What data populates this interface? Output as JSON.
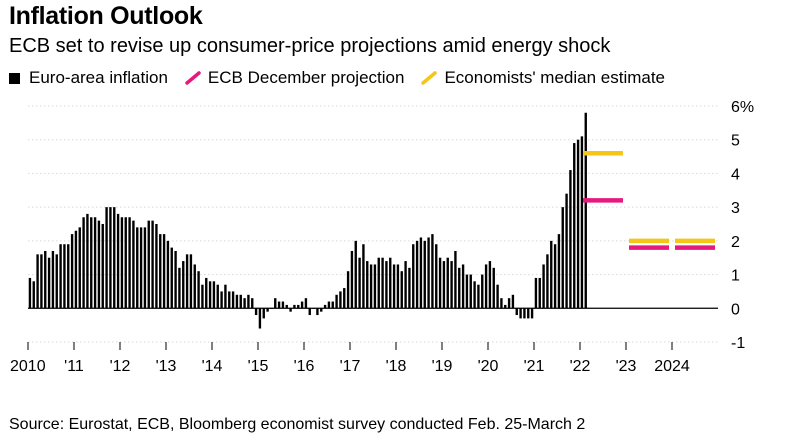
{
  "chart_data": {
    "type": "bar",
    "title": "Inflation Outlook",
    "subtitle": "ECB set to revise up consumer-price projections amid energy shock",
    "source": "Source: Eurostat, ECB, Bloomberg economist survey conducted Feb. 25-March 2",
    "legend": [
      {
        "label": "Euro-area inflation",
        "color": "#000000",
        "kind": "square"
      },
      {
        "label": "ECB December projection",
        "color": "#e6197e",
        "kind": "dash"
      },
      {
        "label": "Economists' median estimate",
        "color": "#f5c518",
        "kind": "dash"
      }
    ],
    "ylim": [
      -1,
      6
    ],
    "y_ticks": [
      6,
      5,
      4,
      3,
      2,
      1,
      0,
      -1
    ],
    "y_tick_labels": [
      "6%",
      "5",
      "4",
      "3",
      "2",
      "1",
      "0",
      "-1"
    ],
    "x_ticks": [
      {
        "year": 2010,
        "label": "2010"
      },
      {
        "year": 2011,
        "label": "'11"
      },
      {
        "year": 2012,
        "label": "'12"
      },
      {
        "year": 2013,
        "label": "'13"
      },
      {
        "year": 2014,
        "label": "'14"
      },
      {
        "year": 2015,
        "label": "'15"
      },
      {
        "year": 2016,
        "label": "'16"
      },
      {
        "year": 2017,
        "label": "'17"
      },
      {
        "year": 2018,
        "label": "'18"
      },
      {
        "year": 2019,
        "label": "'19"
      },
      {
        "year": 2020,
        "label": "'20"
      },
      {
        "year": 2021,
        "label": "'21"
      },
      {
        "year": 2022,
        "label": "'22"
      },
      {
        "year": 2023,
        "label": "'23"
      },
      {
        "year": 2024,
        "label": "2024"
      }
    ],
    "x_domain": [
      2010,
      2025
    ],
    "series_start": "2010-01",
    "monthly_inflation": [
      0.9,
      0.8,
      1.6,
      1.6,
      1.7,
      1.5,
      1.7,
      1.6,
      1.9,
      1.9,
      1.9,
      2.2,
      2.3,
      2.4,
      2.7,
      2.8,
      2.7,
      2.7,
      2.6,
      2.5,
      3.0,
      3.0,
      3.0,
      2.8,
      2.7,
      2.7,
      2.7,
      2.6,
      2.4,
      2.4,
      2.4,
      2.6,
      2.6,
      2.5,
      2.2,
      2.2,
      2.0,
      1.8,
      1.7,
      1.2,
      1.4,
      1.6,
      1.6,
      1.3,
      1.1,
      0.7,
      0.9,
      0.8,
      0.8,
      0.7,
      0.5,
      0.7,
      0.5,
      0.5,
      0.4,
      0.4,
      0.3,
      0.4,
      0.3,
      -0.2,
      -0.6,
      -0.3,
      -0.1,
      0.0,
      0.3,
      0.2,
      0.2,
      0.1,
      -0.1,
      0.1,
      0.1,
      0.2,
      0.3,
      -0.2,
      0.0,
      -0.2,
      -0.1,
      0.1,
      0.2,
      0.2,
      0.4,
      0.5,
      0.6,
      1.1,
      1.7,
      2.0,
      1.5,
      1.9,
      1.4,
      1.3,
      1.3,
      1.5,
      1.5,
      1.4,
      1.5,
      1.3,
      1.3,
      1.1,
      1.4,
      1.2,
      1.9,
      2.0,
      2.1,
      2.0,
      2.1,
      2.2,
      1.9,
      1.5,
      1.4,
      1.5,
      1.4,
      1.7,
      1.2,
      1.3,
      1.0,
      1.0,
      0.8,
      0.7,
      1.0,
      1.3,
      1.4,
      1.2,
      0.7,
      0.3,
      0.1,
      0.3,
      0.4,
      -0.2,
      -0.3,
      -0.3,
      -0.3,
      -0.3,
      0.9,
      0.9,
      1.3,
      1.6,
      2.0,
      1.9,
      2.2,
      3.0,
      3.4,
      4.1,
      4.9,
      5.0,
      5.1,
      5.8
    ],
    "projections": [
      {
        "name": "ECB December projection",
        "color": "#e6197e",
        "periods": [
          {
            "year": 2022,
            "value": 3.2
          },
          {
            "year": 2023,
            "value": 1.8
          },
          {
            "year": 2024,
            "value": 1.8
          }
        ]
      },
      {
        "name": "Economists' median estimate",
        "color": "#f5c518",
        "periods": [
          {
            "year": 2022,
            "value": 4.6
          },
          {
            "year": 2023,
            "value": 2.0
          },
          {
            "year": 2024,
            "value": 2.0
          }
        ]
      }
    ]
  }
}
